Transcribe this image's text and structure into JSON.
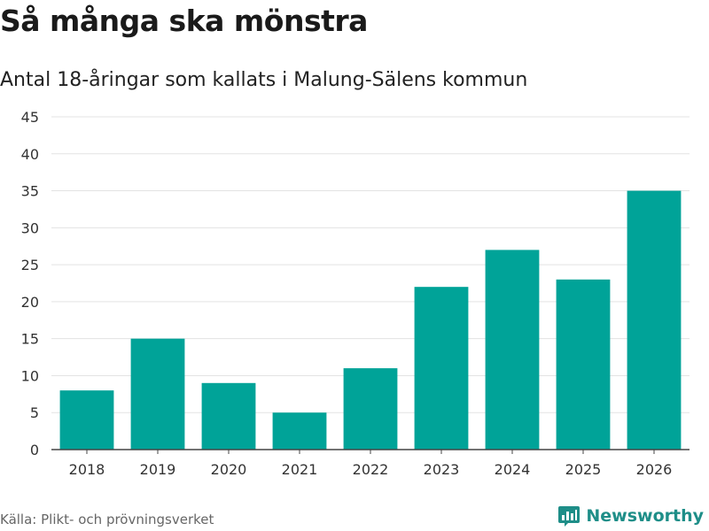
{
  "title": "Så många ska mönstra",
  "subtitle": "Antal 18-åringar som kallats i Malung-Sälens kommun",
  "source": "Källa: Plikt- och prövningsverket",
  "brand": {
    "name": "Newsworthy",
    "icon": "bar-chart-logo-icon"
  },
  "colors": {
    "bar": "#00A398",
    "brand": "#1E8E88",
    "grid": "#e3e3e3",
    "axis": "#444444"
  },
  "chart_data": {
    "type": "bar",
    "title": "Så många ska mönstra",
    "subtitle": "Antal 18-åringar som kallats i Malung-Sälens kommun",
    "xlabel": "",
    "ylabel": "",
    "categories": [
      "2018",
      "2019",
      "2020",
      "2021",
      "2022",
      "2023",
      "2024",
      "2025",
      "2026"
    ],
    "values": [
      8,
      15,
      9,
      5,
      11,
      22,
      27,
      23,
      35
    ],
    "ylim": [
      0,
      45
    ],
    "yticks": [
      0,
      5,
      10,
      15,
      20,
      25,
      30,
      35,
      40,
      45
    ],
    "grid": true,
    "legend": "none"
  }
}
